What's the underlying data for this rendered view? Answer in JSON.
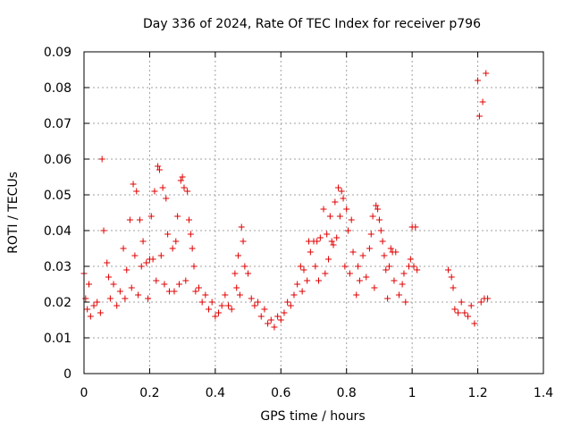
{
  "chart_data": {
    "type": "scatter",
    "title": "Day 336 of 2024, Rate Of TEC Index for receiver p796",
    "xlabel": "GPS time / hours",
    "ylabel": "ROTI / TECUs",
    "xlim": [
      0,
      1.4
    ],
    "ylim": [
      0,
      0.09
    ],
    "x_ticks": [
      0,
      0.2,
      0.4,
      0.6,
      0.8,
      1,
      1.2,
      1.4
    ],
    "x_tick_labels": [
      "0",
      "0.2",
      "0.4",
      "0.6",
      "0.8",
      "1",
      "1.2",
      "1.4"
    ],
    "y_ticks": [
      0,
      0.01,
      0.02,
      0.03,
      0.04,
      0.05,
      0.06,
      0.07,
      0.08,
      0.09
    ],
    "y_tick_labels": [
      "0",
      "0.01",
      "0.02",
      "0.03",
      "0.04",
      "0.05",
      "0.06",
      "0.07",
      "0.08",
      "0.09"
    ],
    "grid": true,
    "marker": "+",
    "color": "#e00000",
    "series": [
      {
        "name": "p796",
        "points": [
          [
            0.0,
            0.028
          ],
          [
            0.005,
            0.021
          ],
          [
            0.01,
            0.018
          ],
          [
            0.015,
            0.025
          ],
          [
            0.02,
            0.016
          ],
          [
            0.03,
            0.019
          ],
          [
            0.04,
            0.02
          ],
          [
            0.05,
            0.017
          ],
          [
            0.055,
            0.06
          ],
          [
            0.06,
            0.04
          ],
          [
            0.07,
            0.031
          ],
          [
            0.075,
            0.027
          ],
          [
            0.08,
            0.021
          ],
          [
            0.09,
            0.025
          ],
          [
            0.1,
            0.019
          ],
          [
            0.11,
            0.023
          ],
          [
            0.12,
            0.035
          ],
          [
            0.125,
            0.021
          ],
          [
            0.13,
            0.029
          ],
          [
            0.14,
            0.043
          ],
          [
            0.145,
            0.024
          ],
          [
            0.15,
            0.053
          ],
          [
            0.155,
            0.033
          ],
          [
            0.16,
            0.051
          ],
          [
            0.165,
            0.022
          ],
          [
            0.17,
            0.043
          ],
          [
            0.175,
            0.03
          ],
          [
            0.18,
            0.037
          ],
          [
            0.19,
            0.031
          ],
          [
            0.195,
            0.021
          ],
          [
            0.2,
            0.032
          ],
          [
            0.205,
            0.044
          ],
          [
            0.21,
            0.032
          ],
          [
            0.215,
            0.051
          ],
          [
            0.22,
            0.026
          ],
          [
            0.225,
            0.058
          ],
          [
            0.23,
            0.057
          ],
          [
            0.235,
            0.033
          ],
          [
            0.24,
            0.052
          ],
          [
            0.245,
            0.025
          ],
          [
            0.25,
            0.049
          ],
          [
            0.255,
            0.039
          ],
          [
            0.26,
            0.023
          ],
          [
            0.27,
            0.035
          ],
          [
            0.275,
            0.023
          ],
          [
            0.28,
            0.037
          ],
          [
            0.285,
            0.044
          ],
          [
            0.29,
            0.025
          ],
          [
            0.295,
            0.054
          ],
          [
            0.3,
            0.055
          ],
          [
            0.305,
            0.052
          ],
          [
            0.31,
            0.026
          ],
          [
            0.315,
            0.051
          ],
          [
            0.32,
            0.043
          ],
          [
            0.325,
            0.039
          ],
          [
            0.33,
            0.035
          ],
          [
            0.335,
            0.03
          ],
          [
            0.34,
            0.023
          ],
          [
            0.35,
            0.024
          ],
          [
            0.36,
            0.02
          ],
          [
            0.37,
            0.022
          ],
          [
            0.38,
            0.018
          ],
          [
            0.39,
            0.02
          ],
          [
            0.4,
            0.016
          ],
          [
            0.41,
            0.017
          ],
          [
            0.42,
            0.019
          ],
          [
            0.43,
            0.022
          ],
          [
            0.44,
            0.019
          ],
          [
            0.45,
            0.018
          ],
          [
            0.46,
            0.028
          ],
          [
            0.465,
            0.024
          ],
          [
            0.47,
            0.033
          ],
          [
            0.475,
            0.022
          ],
          [
            0.48,
            0.041
          ],
          [
            0.485,
            0.037
          ],
          [
            0.49,
            0.03
          ],
          [
            0.5,
            0.028
          ],
          [
            0.51,
            0.021
          ],
          [
            0.52,
            0.019
          ],
          [
            0.53,
            0.02
          ],
          [
            0.54,
            0.016
          ],
          [
            0.55,
            0.018
          ],
          [
            0.56,
            0.014
          ],
          [
            0.57,
            0.015
          ],
          [
            0.58,
            0.013
          ],
          [
            0.59,
            0.016
          ],
          [
            0.6,
            0.015
          ],
          [
            0.61,
            0.017
          ],
          [
            0.62,
            0.02
          ],
          [
            0.63,
            0.019
          ],
          [
            0.64,
            0.022
          ],
          [
            0.65,
            0.025
          ],
          [
            0.66,
            0.03
          ],
          [
            0.665,
            0.023
          ],
          [
            0.67,
            0.029
          ],
          [
            0.68,
            0.026
          ],
          [
            0.685,
            0.037
          ],
          [
            0.69,
            0.034
          ],
          [
            0.7,
            0.037
          ],
          [
            0.705,
            0.03
          ],
          [
            0.71,
            0.037
          ],
          [
            0.715,
            0.026
          ],
          [
            0.72,
            0.038
          ],
          [
            0.73,
            0.046
          ],
          [
            0.735,
            0.028
          ],
          [
            0.74,
            0.039
          ],
          [
            0.745,
            0.032
          ],
          [
            0.75,
            0.044
          ],
          [
            0.755,
            0.037
          ],
          [
            0.76,
            0.036
          ],
          [
            0.765,
            0.048
          ],
          [
            0.77,
            0.038
          ],
          [
            0.775,
            0.052
          ],
          [
            0.78,
            0.044
          ],
          [
            0.785,
            0.051
          ],
          [
            0.79,
            0.049
          ],
          [
            0.795,
            0.03
          ],
          [
            0.8,
            0.046
          ],
          [
            0.805,
            0.04
          ],
          [
            0.81,
            0.028
          ],
          [
            0.815,
            0.043
          ],
          [
            0.82,
            0.034
          ],
          [
            0.83,
            0.022
          ],
          [
            0.835,
            0.03
          ],
          [
            0.84,
            0.026
          ],
          [
            0.85,
            0.033
          ],
          [
            0.86,
            0.027
          ],
          [
            0.87,
            0.035
          ],
          [
            0.875,
            0.039
          ],
          [
            0.88,
            0.044
          ],
          [
            0.885,
            0.024
          ],
          [
            0.89,
            0.047
          ],
          [
            0.895,
            0.046
          ],
          [
            0.9,
            0.043
          ],
          [
            0.905,
            0.04
          ],
          [
            0.91,
            0.037
          ],
          [
            0.915,
            0.033
          ],
          [
            0.92,
            0.029
          ],
          [
            0.925,
            0.021
          ],
          [
            0.93,
            0.03
          ],
          [
            0.935,
            0.035
          ],
          [
            0.94,
            0.034
          ],
          [
            0.945,
            0.026
          ],
          [
            0.95,
            0.034
          ],
          [
            0.96,
            0.022
          ],
          [
            0.97,
            0.025
          ],
          [
            0.975,
            0.028
          ],
          [
            0.98,
            0.02
          ],
          [
            0.99,
            0.03
          ],
          [
            0.995,
            0.032
          ],
          [
            1.0,
            0.041
          ],
          [
            1.005,
            0.03
          ],
          [
            1.01,
            0.041
          ],
          [
            1.015,
            0.029
          ],
          [
            1.11,
            0.029
          ],
          [
            1.12,
            0.027
          ],
          [
            1.125,
            0.024
          ],
          [
            1.13,
            0.018
          ],
          [
            1.14,
            0.017
          ],
          [
            1.15,
            0.02
          ],
          [
            1.16,
            0.017
          ],
          [
            1.17,
            0.016
          ],
          [
            1.18,
            0.019
          ],
          [
            1.19,
            0.014
          ],
          [
            1.2,
            0.082
          ],
          [
            1.205,
            0.072
          ],
          [
            1.21,
            0.02
          ],
          [
            1.215,
            0.076
          ],
          [
            1.22,
            0.021
          ],
          [
            1.225,
            0.084
          ],
          [
            1.23,
            0.021
          ]
        ]
      }
    ]
  }
}
